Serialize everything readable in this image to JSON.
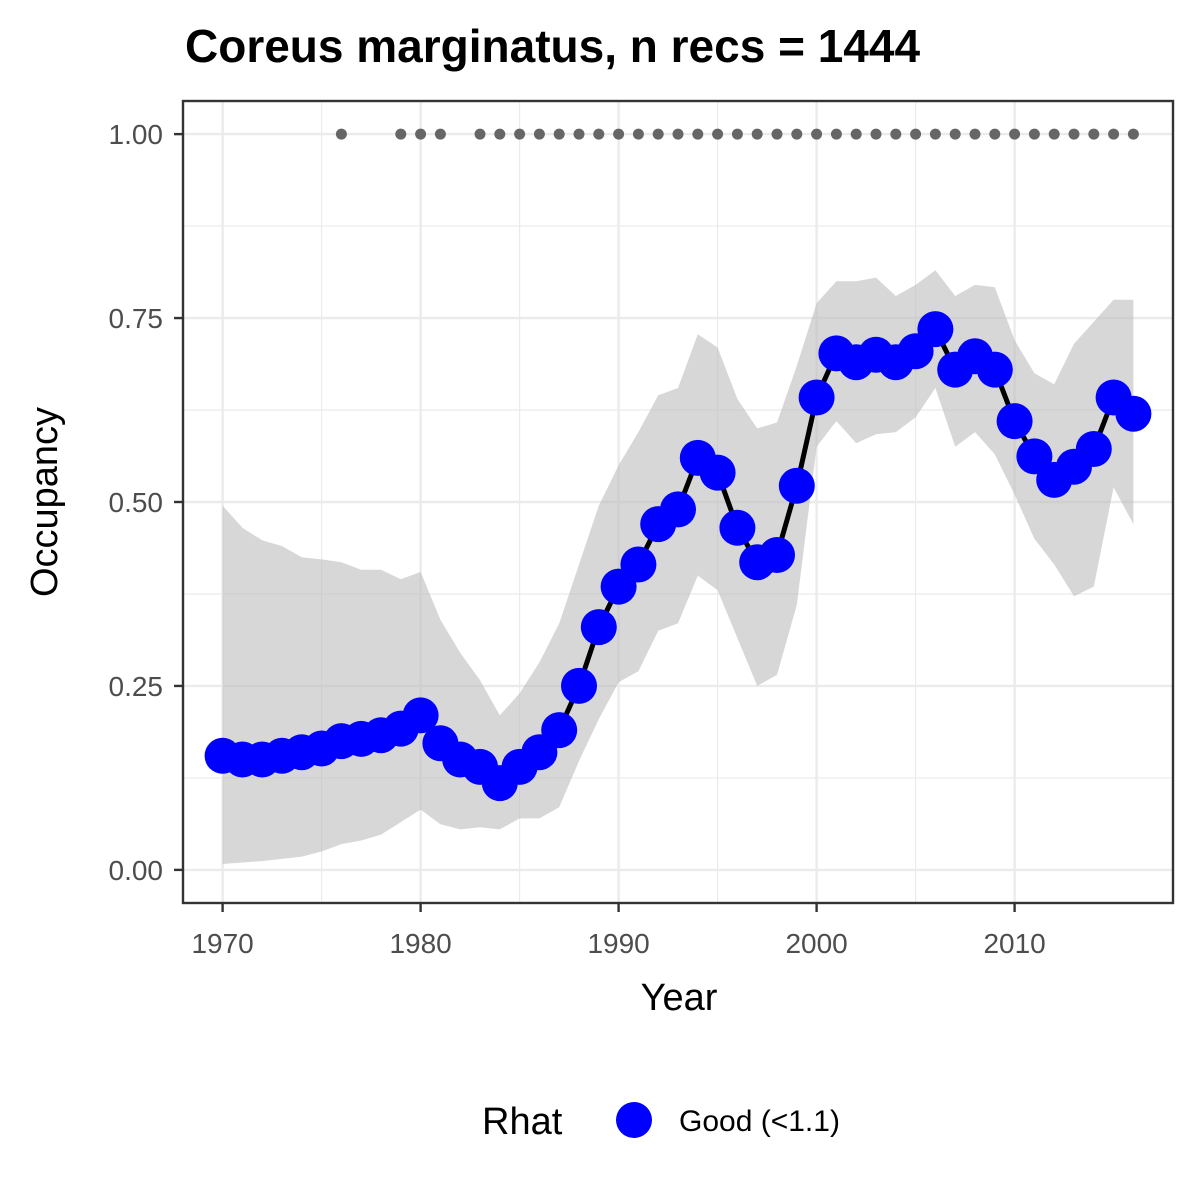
{
  "chart_data": {
    "type": "line",
    "title": "Coreus marginatus, n recs = 1444",
    "xlabel": "Year",
    "ylabel": "Occupancy",
    "xlim": [
      1968,
      2018
    ],
    "ylim": [
      -0.045,
      1.045
    ],
    "x_ticks": [
      1970,
      1980,
      1990,
      2000,
      2010
    ],
    "x_tick_labels": [
      "1970",
      "1980",
      "1990",
      "2000",
      "2010"
    ],
    "y_ticks": [
      0,
      0.25,
      0.5,
      0.75,
      1
    ],
    "y_tick_labels": [
      "0.00",
      "0.25",
      "0.50",
      "0.75",
      "1.00"
    ],
    "grid": true,
    "years": [
      1970,
      1971,
      1972,
      1973,
      1974,
      1975,
      1976,
      1977,
      1978,
      1979,
      1980,
      1981,
      1982,
      1983,
      1984,
      1985,
      1986,
      1987,
      1988,
      1989,
      1990,
      1991,
      1992,
      1993,
      1994,
      1995,
      1996,
      1997,
      1998,
      1999,
      2000,
      2001,
      2002,
      2003,
      2004,
      2005,
      2006,
      2007,
      2008,
      2009,
      2010,
      2011,
      2012,
      2013,
      2014,
      2015,
      2016
    ],
    "series": [
      {
        "legend_label": "Good (<1.1)",
        "values": [
          0.155,
          0.15,
          0.15,
          0.155,
          0.16,
          0.165,
          0.175,
          0.178,
          0.183,
          0.192,
          0.21,
          0.172,
          0.15,
          0.14,
          0.118,
          0.14,
          0.16,
          0.19,
          0.25,
          0.33,
          0.385,
          0.415,
          0.47,
          0.49,
          0.56,
          0.54,
          0.465,
          0.418,
          0.428,
          0.522,
          0.642,
          0.702,
          0.69,
          0.7,
          0.69,
          0.705,
          0.735,
          0.68,
          0.698,
          0.68,
          0.61,
          0.562,
          0.53,
          0.548,
          0.572,
          0.642,
          0.62
        ],
        "lower": [
          0.008,
          0.01,
          0.012,
          0.015,
          0.018,
          0.025,
          0.035,
          0.04,
          0.048,
          0.065,
          0.082,
          0.062,
          0.055,
          0.058,
          0.055,
          0.07,
          0.07,
          0.085,
          0.148,
          0.205,
          0.255,
          0.27,
          0.325,
          0.335,
          0.4,
          0.38,
          0.315,
          0.25,
          0.265,
          0.36,
          0.575,
          0.61,
          0.58,
          0.592,
          0.595,
          0.615,
          0.655,
          0.575,
          0.595,
          0.565,
          0.51,
          0.45,
          0.415,
          0.372,
          0.385,
          0.52,
          0.47
        ],
        "upper": [
          0.495,
          0.465,
          0.448,
          0.44,
          0.425,
          0.422,
          0.418,
          0.408,
          0.408,
          0.395,
          0.405,
          0.34,
          0.295,
          0.258,
          0.21,
          0.24,
          0.282,
          0.335,
          0.415,
          0.495,
          0.55,
          0.595,
          0.645,
          0.655,
          0.728,
          0.71,
          0.64,
          0.6,
          0.608,
          0.685,
          0.77,
          0.8,
          0.8,
          0.805,
          0.78,
          0.795,
          0.815,
          0.78,
          0.795,
          0.792,
          0.72,
          0.675,
          0.66,
          0.715,
          0.745,
          0.775,
          0.775
        ]
      }
    ],
    "rug_years": [
      1976,
      1979,
      1980,
      1981,
      1983,
      1984,
      1985,
      1986,
      1987,
      1988,
      1989,
      1990,
      1991,
      1992,
      1993,
      1994,
      1995,
      1996,
      1997,
      1998,
      1999,
      2000,
      2001,
      2002,
      2003,
      2004,
      2005,
      2006,
      2007,
      2008,
      2009,
      2010,
      2011,
      2012,
      2013,
      2014,
      2015,
      2016
    ],
    "rug_y": 1.0,
    "legend": {
      "title": "Rhat",
      "position": "bottom"
    },
    "colors": {
      "points": "#0000ff",
      "line": "#000000",
      "ribbon": "#bebebe",
      "rug": "#666666",
      "grid": "#ebebeb",
      "panel_border": "#333333"
    }
  }
}
